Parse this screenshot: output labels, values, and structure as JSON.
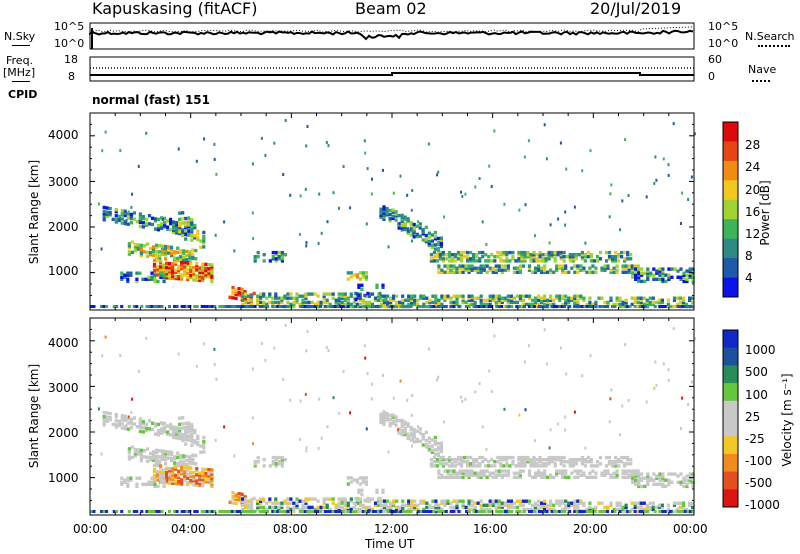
{
  "header": {
    "station": "Kapuskasing (fitACF)",
    "beam": "Beam 02",
    "date": "20/Jul/2019"
  },
  "noise_panel": {
    "left_label": "N.Sky",
    "right_label": "N.Search",
    "ytick_top": "10^5",
    "ytick_bottom": "10^0"
  },
  "freq_panel": {
    "left_label_1": "Freq.",
    "left_label_2": "[MHz]",
    "left_tick_top": "18",
    "left_tick_bottom": "8",
    "right_label": "Nave",
    "right_tick_top": "60",
    "right_tick_bottom": "0",
    "cpid_label": "CPID",
    "cpid_value": "normal (fast) 151"
  },
  "chart_data": [
    {
      "type": "heatmap",
      "name": "power",
      "ylabel": "Slant Range [km]",
      "xlabel": "Time UT",
      "ylim": [
        180,
        4500
      ],
      "yticks": [
        "1000",
        "2000",
        "3000",
        "4000"
      ],
      "xticks": [
        "00:00",
        "04:00",
        "08:00",
        "12:00",
        "16:00",
        "20:00",
        "00:00"
      ],
      "colorbar": {
        "label": "Power [dB]",
        "ticks": [
          "4",
          "8",
          "12",
          "16",
          "20",
          "24",
          "28"
        ],
        "colors": [
          "#0a14e6",
          "#1e5aa8",
          "#2d8c82",
          "#3cb45a",
          "#a0d232",
          "#f0c81e",
          "#f08c14",
          "#e64614",
          "#dc0a0a"
        ]
      }
    },
    {
      "type": "heatmap",
      "name": "velocity",
      "ylabel": "Slant Range [km]",
      "xlabel": "Time UT",
      "ylim": [
        180,
        4500
      ],
      "yticks": [
        "1000",
        "2000",
        "3000",
        "4000"
      ],
      "xticks": [
        "00:00",
        "04:00",
        "08:00",
        "12:00",
        "16:00",
        "20:00",
        "00:00"
      ],
      "colorbar": {
        "label": "Velocity [m s⁻¹]",
        "ticks": [
          "1000",
          "500",
          "100",
          "25",
          "-25",
          "-100",
          "-500",
          "-1000"
        ],
        "colors": [
          "#1428c8",
          "#1e50a0",
          "#288c5a",
          "#64c83c",
          "#c8c8c8",
          "#c8c8c8",
          "#f0c828",
          "#f08c1e",
          "#e6501e",
          "#dc1414"
        ]
      }
    }
  ]
}
